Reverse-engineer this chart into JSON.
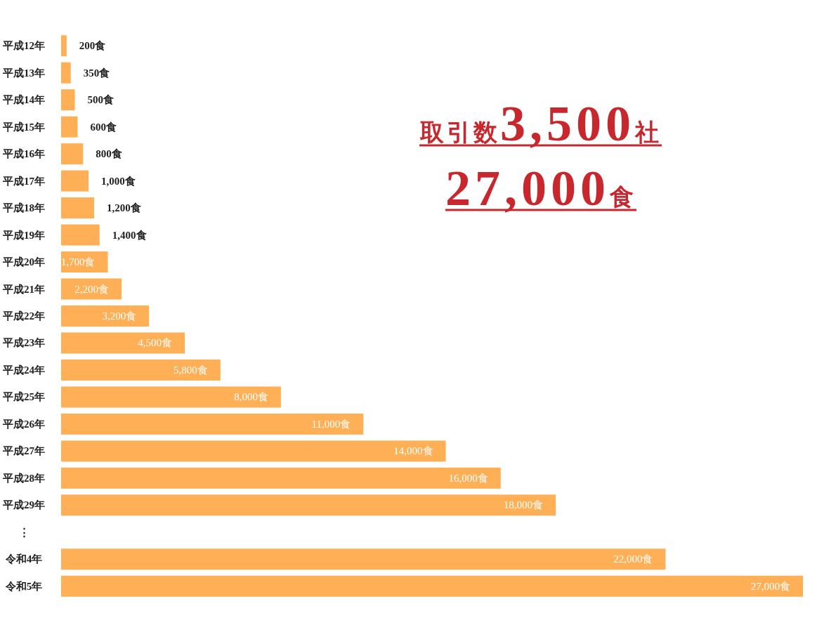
{
  "chart_data": {
    "type": "bar",
    "orientation": "horizontal",
    "color": "#ffb056",
    "categories": [
      "平成12年",
      "平成13年",
      "平成14年",
      "平成15年",
      "平成16年",
      "平成17年",
      "平成18年",
      "平成19年",
      "平成20年",
      "平成21年",
      "平成22年",
      "平成23年",
      "平成24年",
      "平成25年",
      "平成26年",
      "平成27年",
      "平成28年",
      "平成29年",
      "⋮",
      "令和4年",
      "令和5年"
    ],
    "values": [
      200,
      350,
      500,
      600,
      800,
      1000,
      1200,
      1400,
      1700,
      2200,
      3200,
      4500,
      5800,
      8000,
      11000,
      14000,
      16000,
      18000,
      null,
      22000,
      27000
    ],
    "value_labels": [
      "200食",
      "350食",
      "500食",
      "600食",
      "800食",
      "1,000食",
      "1,200食",
      "1,400食",
      "1,700食",
      "2,200食",
      "3,200食",
      "4,500食",
      "5,800食",
      "8,000食",
      "11,000食",
      "14,000食",
      "16,000食",
      "18,000食",
      null,
      "22,000食",
      "27,000食"
    ],
    "annotations": [
      "取引数3,500社",
      "27,000食"
    ]
  }
}
